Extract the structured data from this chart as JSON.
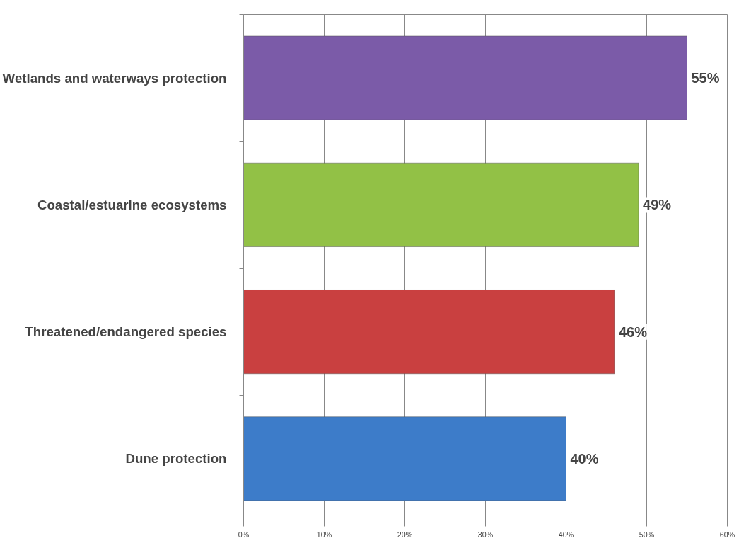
{
  "chart_data": {
    "type": "bar",
    "orientation": "horizontal",
    "categories": [
      "Wetlands and waterways protection",
      "Coastal/estuarine ecosystems",
      "Threatened/endangered species",
      "Dune protection"
    ],
    "values": [
      55,
      49,
      46,
      40
    ],
    "colors": [
      "#7b5ba8",
      "#92c146",
      "#c94040",
      "#3d7cc9"
    ],
    "value_labels": [
      "55%",
      "49%",
      "46%",
      "40%"
    ],
    "xlim": [
      0,
      60
    ],
    "xticks": [
      {
        "value": 0,
        "label": "0%"
      },
      {
        "value": 10,
        "label": "10%"
      },
      {
        "value": 20,
        "label": "20%"
      },
      {
        "value": 30,
        "label": "30%"
      },
      {
        "value": 40,
        "label": "40%"
      },
      {
        "value": 50,
        "label": "50%"
      },
      {
        "value": 60,
        "label": "60%"
      }
    ],
    "grid": "x"
  }
}
